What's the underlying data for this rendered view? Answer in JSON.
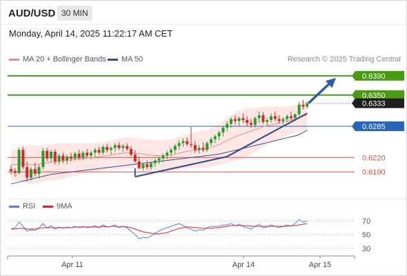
{
  "header": {
    "symbol": "AUD/USD",
    "interval": "30 MIN"
  },
  "datetime": "Monday, April 14, 2025 11:22:17 AM CET",
  "legend": {
    "items": [
      {
        "label": "MA 20 + Bollinger Bands",
        "color": "#f08c84"
      },
      {
        "label": "MA 50",
        "color": "#2e4e8c"
      }
    ],
    "credit": "Research © 2025 Trading Central"
  },
  "rsi_legend": {
    "items": [
      {
        "label": "RSI",
        "color": "#5b7fd6"
      },
      {
        "label": "9MA",
        "color": "#e02020"
      }
    ]
  },
  "chart_data": {
    "type": "candlestick",
    "ylim": [
      0.614,
      0.641
    ],
    "x_ticks": [
      "Apr 11",
      "Apr 14",
      "Apr 15"
    ],
    "last_price": "0.6333",
    "levels": [
      {
        "value": 0.639,
        "label": "0.6390",
        "kind": "resistance",
        "color": "#4a9a14"
      },
      {
        "value": 0.635,
        "label": "0.6350",
        "kind": "resistance",
        "color": "#4a9a14"
      },
      {
        "value": 0.6285,
        "label": "0.6285",
        "kind": "pivot",
        "color": "#2a66b8"
      },
      {
        "value": 0.622,
        "label": "0.6220",
        "kind": "support",
        "color": "#e04a4a"
      },
      {
        "value": 0.619,
        "label": "0.6190",
        "kind": "support",
        "color": "#e04a4a"
      }
    ],
    "rsi_ticks": [
      70,
      50,
      30
    ],
    "rsi_ylim": [
      20,
      80
    ],
    "candles": [
      [
        0.6196,
        0.6204,
        0.6185,
        0.6192
      ],
      [
        0.6192,
        0.6198,
        0.618,
        0.6188
      ],
      [
        0.6188,
        0.624,
        0.6185,
        0.6236
      ],
      [
        0.6236,
        0.6242,
        0.6196,
        0.62
      ],
      [
        0.62,
        0.6212,
        0.617,
        0.6178
      ],
      [
        0.6178,
        0.62,
        0.6172,
        0.6196
      ],
      [
        0.6196,
        0.621,
        0.618,
        0.6186
      ],
      [
        0.6186,
        0.6205,
        0.6176,
        0.62
      ],
      [
        0.62,
        0.624,
        0.6195,
        0.6234
      ],
      [
        0.6234,
        0.624,
        0.6212,
        0.6218
      ],
      [
        0.6218,
        0.6236,
        0.621,
        0.6232
      ],
      [
        0.6232,
        0.6238,
        0.6205,
        0.6212
      ],
      [
        0.6212,
        0.6228,
        0.6205,
        0.6224
      ],
      [
        0.6224,
        0.623,
        0.6208,
        0.6214
      ],
      [
        0.6214,
        0.6226,
        0.6206,
        0.6222
      ],
      [
        0.6222,
        0.623,
        0.6212,
        0.6218
      ],
      [
        0.6218,
        0.6232,
        0.6214,
        0.6228
      ],
      [
        0.6228,
        0.6236,
        0.6216,
        0.622
      ],
      [
        0.622,
        0.6234,
        0.6214,
        0.623
      ],
      [
        0.623,
        0.6238,
        0.622,
        0.6224
      ],
      [
        0.6224,
        0.6234,
        0.6216,
        0.623
      ],
      [
        0.623,
        0.624,
        0.6222,
        0.6236
      ],
      [
        0.6236,
        0.6242,
        0.6226,
        0.623
      ],
      [
        0.623,
        0.6246,
        0.6226,
        0.6242
      ],
      [
        0.6242,
        0.6248,
        0.623,
        0.6236
      ],
      [
        0.6236,
        0.6244,
        0.6226,
        0.624
      ],
      [
        0.624,
        0.625,
        0.6232,
        0.6246
      ],
      [
        0.6246,
        0.6252,
        0.6236,
        0.624
      ],
      [
        0.624,
        0.6248,
        0.6232,
        0.6244
      ],
      [
        0.6244,
        0.625,
        0.6234,
        0.6238
      ],
      [
        0.6238,
        0.6244,
        0.6222,
        0.6226
      ],
      [
        0.6226,
        0.6236,
        0.621,
        0.6212
      ],
      [
        0.6212,
        0.6222,
        0.6196,
        0.6198
      ],
      [
        0.6198,
        0.621,
        0.6192,
        0.6206
      ],
      [
        0.6206,
        0.6214,
        0.6196,
        0.62
      ],
      [
        0.62,
        0.6212,
        0.6194,
        0.6208
      ],
      [
        0.6208,
        0.6218,
        0.62,
        0.6214
      ],
      [
        0.6214,
        0.6222,
        0.6206,
        0.6218
      ],
      [
        0.6218,
        0.6228,
        0.621,
        0.6224
      ],
      [
        0.6224,
        0.6234,
        0.6216,
        0.623
      ],
      [
        0.623,
        0.624,
        0.6222,
        0.6236
      ],
      [
        0.6236,
        0.6248,
        0.6228,
        0.6244
      ],
      [
        0.6244,
        0.6256,
        0.6236,
        0.625
      ],
      [
        0.625,
        0.626,
        0.6242,
        0.6254
      ],
      [
        0.6254,
        0.6262,
        0.6244,
        0.6248
      ],
      [
        0.6248,
        0.6284,
        0.624,
        0.6246
      ],
      [
        0.6246,
        0.6254,
        0.623,
        0.6236
      ],
      [
        0.6236,
        0.6246,
        0.6228,
        0.624
      ],
      [
        0.624,
        0.6252,
        0.6232,
        0.6236
      ],
      [
        0.6236,
        0.6254,
        0.6232,
        0.625
      ],
      [
        0.625,
        0.6262,
        0.6244,
        0.6258
      ],
      [
        0.6258,
        0.6268,
        0.625,
        0.6264
      ],
      [
        0.6264,
        0.6276,
        0.6256,
        0.6272
      ],
      [
        0.6272,
        0.6286,
        0.6264,
        0.6282
      ],
      [
        0.6282,
        0.6296,
        0.6274,
        0.629
      ],
      [
        0.629,
        0.6304,
        0.6282,
        0.63
      ],
      [
        0.63,
        0.6308,
        0.6288,
        0.6296
      ],
      [
        0.6296,
        0.6306,
        0.6284,
        0.6302
      ],
      [
        0.6302,
        0.6312,
        0.6292,
        0.6298
      ],
      [
        0.6298,
        0.6306,
        0.6286,
        0.6292
      ],
      [
        0.6292,
        0.63,
        0.6282,
        0.6288
      ],
      [
        0.6288,
        0.6306,
        0.6282,
        0.6302
      ],
      [
        0.6302,
        0.6316,
        0.6292,
        0.6308
      ],
      [
        0.6308,
        0.6314,
        0.629,
        0.6294
      ],
      [
        0.6294,
        0.6302,
        0.6286,
        0.6298
      ],
      [
        0.6298,
        0.6312,
        0.6292,
        0.6306
      ],
      [
        0.6306,
        0.6316,
        0.6296,
        0.63
      ],
      [
        0.63,
        0.6308,
        0.629,
        0.6296
      ],
      [
        0.6296,
        0.6304,
        0.6288,
        0.63
      ],
      [
        0.63,
        0.631,
        0.6294,
        0.6306
      ],
      [
        0.6306,
        0.6316,
        0.6298,
        0.6302
      ],
      [
        0.6302,
        0.6312,
        0.6296,
        0.631
      ],
      [
        0.631,
        0.6336,
        0.6306,
        0.633
      ],
      [
        0.633,
        0.634,
        0.632,
        0.6326
      ],
      [
        0.6326,
        0.6336,
        0.6322,
        0.6333
      ]
    ],
    "ma20": [
      0.6206,
      0.6205,
      0.6206,
      0.6207,
      0.6206,
      0.6205,
      0.6205,
      0.6206,
      0.6208,
      0.6209,
      0.621,
      0.6211,
      0.6212,
      0.6213,
      0.6214,
      0.6215,
      0.6216,
      0.6217,
      0.6218,
      0.6219,
      0.622,
      0.6221,
      0.6222,
      0.6223,
      0.6224,
      0.6225,
      0.6227,
      0.6228,
      0.6229,
      0.623,
      0.623,
      0.6229,
      0.6228,
      0.6227,
      0.6226,
      0.6225,
      0.6224,
      0.6224,
      0.6224,
      0.6225,
      0.6226,
      0.6227,
      0.6229,
      0.6231,
      0.6233,
      0.6234,
      0.6235,
      0.6236,
      0.6237,
      0.6239,
      0.6241,
      0.6244,
      0.6247,
      0.6251,
      0.6255,
      0.6259,
      0.6263,
      0.6266,
      0.6269,
      0.6272,
      0.6275,
      0.6278,
      0.6281,
      0.6284,
      0.6286,
      0.6288,
      0.629,
      0.6292,
      0.6294,
      0.6296,
      0.6298,
      0.63,
      0.6303,
      0.6306,
      0.6309
    ],
    "bb_upper": [
      0.6236,
      0.6238,
      0.6242,
      0.6245,
      0.6246,
      0.6246,
      0.6245,
      0.6245,
      0.6246,
      0.6247,
      0.6248,
      0.6249,
      0.625,
      0.625,
      0.625,
      0.625,
      0.625,
      0.625,
      0.625,
      0.625,
      0.625,
      0.6251,
      0.6252,
      0.6253,
      0.6254,
      0.6256,
      0.6258,
      0.626,
      0.6261,
      0.6262,
      0.6262,
      0.6261,
      0.626,
      0.6259,
      0.6258,
      0.6257,
      0.6256,
      0.6256,
      0.6256,
      0.6257,
      0.6258,
      0.626,
      0.6263,
      0.6266,
      0.6268,
      0.627,
      0.6272,
      0.6274,
      0.6276,
      0.6278,
      0.6281,
      0.6285,
      0.629,
      0.6296,
      0.6302,
      0.6308,
      0.6313,
      0.6317,
      0.632,
      0.6322,
      0.6323,
      0.6324,
      0.6325,
      0.6326,
      0.6326,
      0.6326,
      0.6326,
      0.6326,
      0.6326,
      0.6326,
      0.6327,
      0.6329,
      0.6332,
      0.6335,
      0.6338
    ],
    "bb_lower": [
      0.6176,
      0.6172,
      0.617,
      0.6169,
      0.6166,
      0.6164,
      0.6165,
      0.6167,
      0.617,
      0.6171,
      0.6172,
      0.6173,
      0.6174,
      0.6176,
      0.6178,
      0.618,
      0.6182,
      0.6184,
      0.6186,
      0.6188,
      0.619,
      0.6191,
      0.6192,
      0.6193,
      0.6194,
      0.6194,
      0.6196,
      0.6196,
      0.6197,
      0.6198,
      0.6198,
      0.6197,
      0.6196,
      0.6195,
      0.6194,
      0.6193,
      0.6192,
      0.6192,
      0.6192,
      0.6193,
      0.6194,
      0.6194,
      0.6195,
      0.6196,
      0.6198,
      0.6198,
      0.6198,
      0.6198,
      0.6198,
      0.62,
      0.6201,
      0.6203,
      0.6204,
      0.6206,
      0.6208,
      0.621,
      0.6213,
      0.6215,
      0.6218,
      0.6222,
      0.6227,
      0.6232,
      0.6237,
      0.6242,
      0.6246,
      0.625,
      0.6254,
      0.6258,
      0.6262,
      0.6266,
      0.6269,
      0.6271,
      0.6274,
      0.6277,
      0.628
    ],
    "ma50": [
      0.6165,
      0.6167,
      0.6169,
      0.6171,
      0.6173,
      0.6175,
      0.6177,
      0.6179,
      0.6181,
      0.6183,
      0.6185,
      0.6186,
      0.6187,
      0.6188,
      0.6189,
      0.619,
      0.6191,
      0.6192,
      0.6193,
      0.6194,
      0.6195,
      0.6196,
      0.6197,
      0.6198,
      0.6199,
      0.62,
      0.6201,
      0.6202,
      0.6203,
      0.6204,
      0.6205,
      0.6206,
      0.6207,
      0.6208,
      0.6209,
      0.621,
      0.6211,
      0.6212,
      0.6213,
      0.6214,
      0.6215,
      0.6216,
      0.6217,
      0.6218,
      0.6219,
      0.622,
      0.6221,
      0.6222,
      0.6223,
      0.6224,
      0.6225,
      0.6226,
      0.6227,
      0.6229,
      0.6231,
      0.6233,
      0.6235,
      0.6237,
      0.6239,
      0.6241,
      0.6243,
      0.6245,
      0.6247,
      0.6249,
      0.6251,
      0.6253,
      0.6255,
      0.6257,
      0.6259,
      0.6261,
      0.6263,
      0.6265,
      0.6268,
      0.6272,
      0.6277
    ],
    "rsi": [
      58,
      60,
      68,
      62,
      55,
      57,
      56,
      60,
      66,
      60,
      63,
      58,
      61,
      59,
      61,
      60,
      62,
      60,
      62,
      60,
      61,
      63,
      60,
      64,
      61,
      62,
      64,
      60,
      62,
      60,
      55,
      50,
      44,
      46,
      45,
      48,
      52,
      55,
      58,
      60,
      62,
      64,
      66,
      63,
      60,
      58,
      55,
      57,
      56,
      60,
      62,
      62,
      62,
      64,
      64,
      66,
      63,
      65,
      62,
      60,
      58,
      62,
      65,
      60,
      61,
      64,
      62,
      60,
      62,
      64,
      62,
      66,
      72,
      68,
      70
    ],
    "rsi_ma": [
      58,
      58,
      59,
      59,
      58,
      58,
      58,
      59,
      60,
      60,
      60,
      60,
      60,
      60,
      60,
      60,
      61,
      61,
      61,
      61,
      61,
      61,
      61,
      62,
      61,
      62,
      62,
      61,
      62,
      61,
      60,
      58,
      56,
      54,
      53,
      52,
      51,
      51,
      52,
      53,
      55,
      57,
      59,
      60,
      61,
      61,
      60,
      60,
      59,
      59,
      59,
      60,
      60,
      61,
      62,
      63,
      63,
      63,
      63,
      63,
      62,
      62,
      62,
      62,
      62,
      62,
      62,
      62,
      62,
      62,
      63,
      63,
      64,
      65,
      66
    ],
    "trend_lines": [
      {
        "from": [
          31,
          0.618
        ],
        "to": [
          54,
          0.6222
        ]
      },
      {
        "from": [
          54,
          0.6222
        ],
        "to": [
          74,
          0.6312
        ]
      }
    ],
    "arrow": {
      "from": [
        74,
        0.6333
      ],
      "to": [
        80,
        0.639
      ]
    }
  }
}
